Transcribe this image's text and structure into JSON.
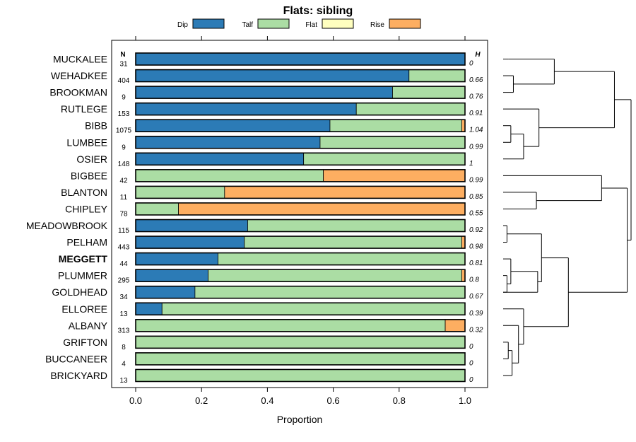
{
  "chart_data": {
    "type": "bar",
    "stacked": true,
    "orientation": "horizontal",
    "title": "Flats: sibling",
    "xlabel": "Proportion",
    "ylabel": "",
    "xlim": [
      0,
      1
    ],
    "x_ticks": [
      "0.0",
      "0.2",
      "0.4",
      "0.6",
      "0.8",
      "1.0"
    ],
    "n_header": "N",
    "h_header": "H",
    "legend": [
      {
        "name": "Dip",
        "color": "#2c7bb6"
      },
      {
        "name": "Talf",
        "color": "#abdda4"
      },
      {
        "name": "Flat",
        "color": "#ffffbf"
      },
      {
        "name": "Rise",
        "color": "#fdae61"
      }
    ],
    "highlighted_category": "MEGGETT",
    "categories": [
      "MUCKALEE",
      "WEHADKEE",
      "BROOKMAN",
      "RUTLEGE",
      "BIBB",
      "LUMBEE",
      "OSIER",
      "BIGBEE",
      "BLANTON",
      "CHIPLEY",
      "MEADOWBROOK",
      "PELHAM",
      "MEGGETT",
      "PLUMMER",
      "GOLDHEAD",
      "ELLOREE",
      "ALBANY",
      "GRIFTON",
      "BUCCANEER",
      "BRICKYARD"
    ],
    "n": [
      "31",
      "404",
      "9",
      "153",
      "1075",
      "9",
      "148",
      "42",
      "11",
      "78",
      "115",
      "443",
      "44",
      "295",
      "34",
      "13",
      "313",
      "8",
      "4",
      "13"
    ],
    "h": [
      "0",
      "0.66",
      "0.76",
      "0.91",
      "1.04",
      "0.99",
      "1",
      "0.99",
      "0.85",
      "0.55",
      "0.92",
      "0.98",
      "0.81",
      "0.8",
      "0.67",
      "0.39",
      "0.32",
      "0",
      "0",
      "0"
    ],
    "series": [
      {
        "name": "Dip",
        "values": [
          1.0,
          0.83,
          0.78,
          0.67,
          0.59,
          0.56,
          0.51,
          0,
          0,
          0,
          0.34,
          0.33,
          0.25,
          0.22,
          0.18,
          0.08,
          0,
          0,
          0,
          0
        ]
      },
      {
        "name": "Talf",
        "values": [
          0,
          0.17,
          0.22,
          0.33,
          0.4,
          0.44,
          0.49,
          0.57,
          0.27,
          0.13,
          0.66,
          0.66,
          0.75,
          0.77,
          0.82,
          0.92,
          0.94,
          1.0,
          1.0,
          1.0
        ]
      },
      {
        "name": "Flat",
        "values": [
          0,
          0,
          0,
          0,
          0,
          0,
          0,
          0,
          0,
          0,
          0,
          0,
          0,
          0,
          0,
          0,
          0,
          0,
          0,
          0
        ]
      },
      {
        "name": "Rise",
        "values": [
          0,
          0,
          0,
          0,
          0.01,
          0,
          0,
          0.43,
          0.73,
          0.87,
          0,
          0.01,
          0,
          0.01,
          0,
          0,
          0.06,
          0,
          0,
          0
        ]
      }
    ],
    "dendrogram": [
      {
        "left": 0,
        "right": 0,
        "height": 0.04
      },
      {
        "left": 1,
        "right": 2,
        "height": 0.08
      },
      {
        "left": 0,
        "right": 1,
        "height": 0.4
      },
      {
        "left": 4,
        "right": 5,
        "height": 0.06
      },
      {
        "left": 4,
        "right": 6,
        "height": 0.16
      },
      {
        "left": 3,
        "right": 4,
        "height": 0.28
      },
      {
        "left": 0,
        "right": 3,
        "height": 0.87
      },
      {
        "left": 8,
        "right": 9,
        "height": 0.26
      },
      {
        "left": 7,
        "right": 8,
        "height": 0.77
      },
      {
        "left": 10,
        "right": 11,
        "height": 0.03
      },
      {
        "left": 13,
        "right": 14,
        "height": 0.03
      },
      {
        "left": 12,
        "right": 13,
        "height": 0.06
      },
      {
        "left": 12,
        "right": 14,
        "height": 0.27
      },
      {
        "left": 10,
        "right": 12,
        "height": 0.3
      },
      {
        "left": 17,
        "right": 18,
        "height": 0.04
      },
      {
        "left": 17,
        "right": 19,
        "height": 0.07
      },
      {
        "left": 16,
        "right": 17,
        "height": 0.12
      },
      {
        "left": 15,
        "right": 16,
        "height": 0.16
      },
      {
        "left": 10,
        "right": 15,
        "height": 0.51
      },
      {
        "left": 7,
        "right": 10,
        "height": 0.97
      },
      {
        "left": 0,
        "right": 7,
        "height": 1.0
      }
    ]
  }
}
